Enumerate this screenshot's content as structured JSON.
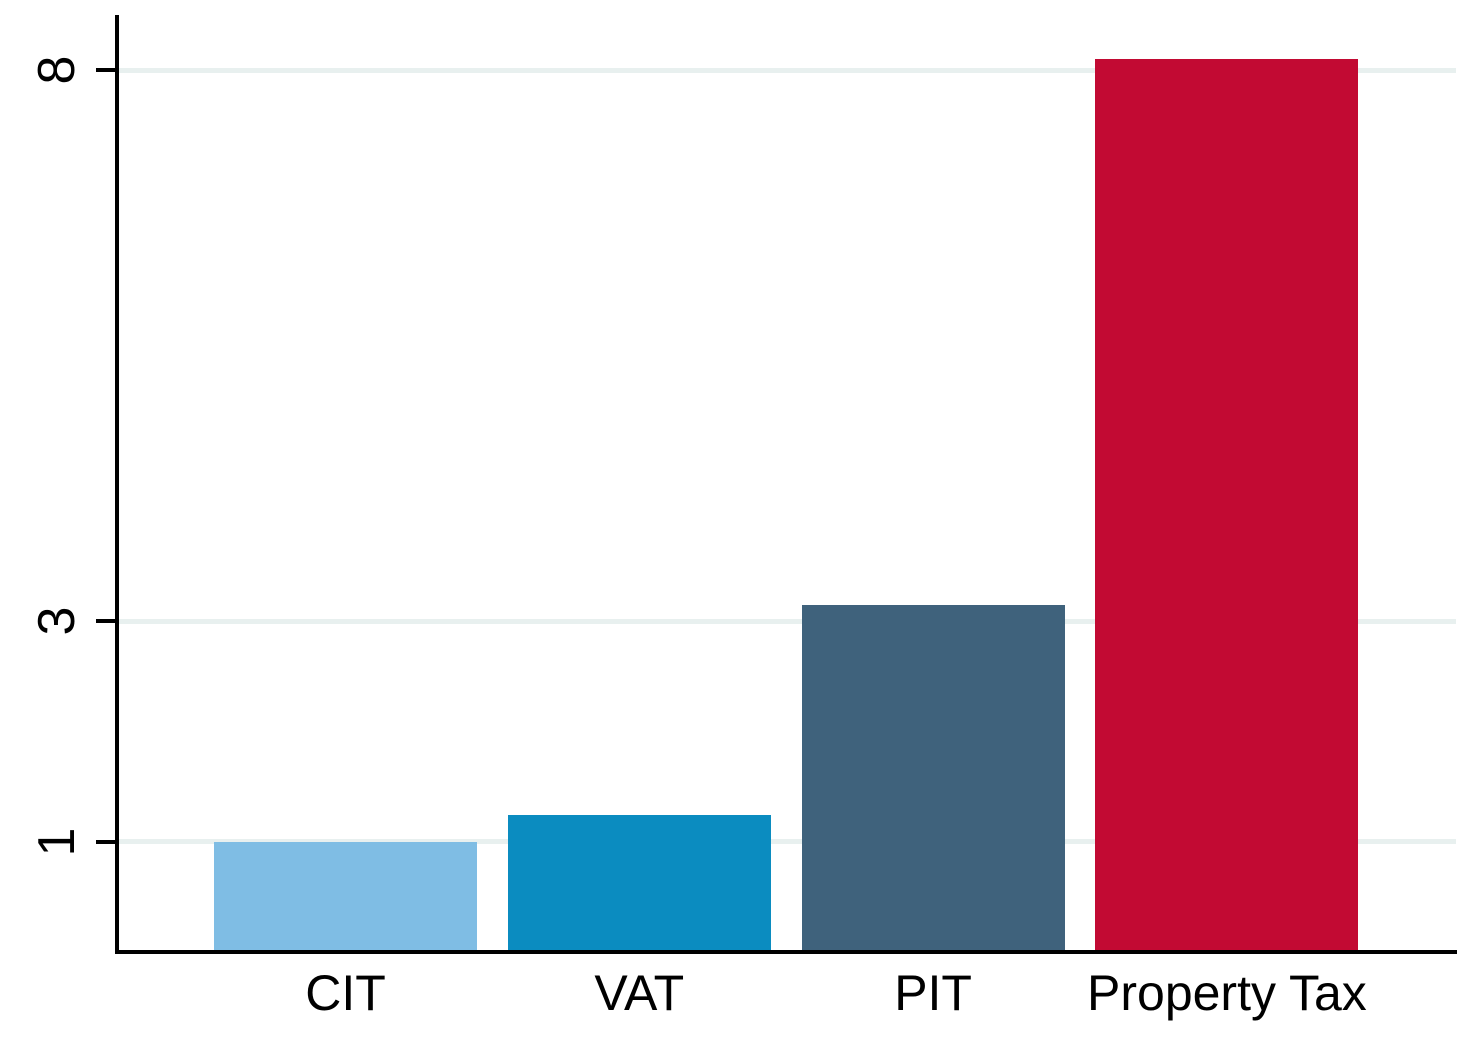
{
  "chart_data": {
    "type": "bar",
    "categories": [
      "CIT",
      "VAT",
      "PIT",
      "Property Tax"
    ],
    "values": [
      1.0,
      1.24,
      3.15,
      8.1
    ],
    "bar_colors": [
      "#7fbde4",
      "#0b8cc0",
      "#3f627c",
      "#c20a33"
    ],
    "title": "",
    "subtitle": "",
    "xlabel": "",
    "ylabel": "",
    "yticks": [
      1,
      3,
      8
    ],
    "ytick_labels": [
      "1",
      "3",
      "8"
    ],
    "ytick_label_rotation": "vertical",
    "ylim": [
      0,
      8.5
    ],
    "grid": true,
    "gridline_color": "#e8f0ef",
    "axis_color": "#000000",
    "background_color": "#ffffff",
    "legend_position": "none"
  }
}
